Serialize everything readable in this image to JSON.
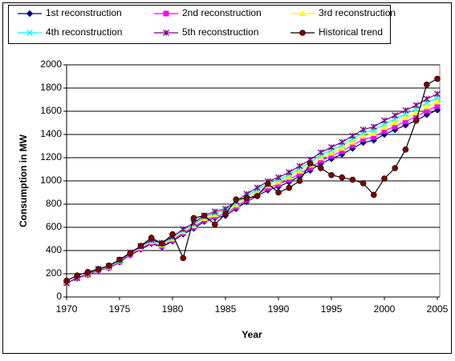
{
  "chart_data": {
    "type": "line",
    "xlabel": "Year",
    "ylabel": "Consumption in MW",
    "x": [
      1970,
      1971,
      1972,
      1973,
      1974,
      1975,
      1976,
      1977,
      1978,
      1979,
      1980,
      1981,
      1982,
      1983,
      1984,
      1985,
      1986,
      1987,
      1988,
      1989,
      1990,
      1991,
      1992,
      1993,
      1994,
      1995,
      1996,
      1997,
      1998,
      1999,
      2000,
      2001,
      2002,
      2003,
      2004,
      2005
    ],
    "xlim": [
      1970,
      2005
    ],
    "xticks": [
      1970,
      1975,
      1980,
      1985,
      1990,
      1995,
      2000,
      2005
    ],
    "ylim": [
      0,
      2000
    ],
    "yticks": [
      0,
      200,
      400,
      600,
      800,
      1000,
      1200,
      1400,
      1600,
      1800,
      2000
    ],
    "grid": true,
    "legend": "top",
    "series": [
      {
        "name": "1st reconstruction",
        "color": "#000080",
        "marker": "diamond",
        "values": [
          120,
          160,
          190,
          230,
          250,
          300,
          360,
          410,
          460,
          430,
          480,
          540,
          590,
          650,
          680,
          700,
          760,
          820,
          870,
          920,
          950,
          990,
          1040,
          1090,
          1150,
          1190,
          1230,
          1280,
          1330,
          1350,
          1400,
          1440,
          1480,
          1520,
          1570,
          1610
        ]
      },
      {
        "name": "2nd reconstruction",
        "color": "#ff00ff",
        "marker": "square",
        "values": [
          120,
          161,
          192,
          233,
          254,
          305,
          366,
          417,
          468,
          439,
          490,
          551,
          602,
          663,
          694,
          715,
          776,
          837,
          888,
          939,
          970,
          1011,
          1062,
          1113,
          1174,
          1215,
          1256,
          1307,
          1358,
          1379,
          1430,
          1471,
          1512,
          1553,
          1604,
          1645
        ]
      },
      {
        "name": "3rd reconstruction",
        "color": "#ffff00",
        "marker": "triangle",
        "values": [
          120,
          162,
          194,
          236,
          258,
          310,
          372,
          424,
          476,
          448,
          500,
          562,
          614,
          676,
          708,
          730,
          792,
          854,
          906,
          958,
          990,
          1032,
          1084,
          1136,
          1198,
          1240,
          1282,
          1334,
          1386,
          1408,
          1460,
          1502,
          1544,
          1586,
          1638,
          1680
        ]
      },
      {
        "name": "4th reconstruction",
        "color": "#00ffff",
        "marker": "x",
        "values": [
          120,
          163,
          196,
          239,
          262,
          315,
          378,
          431,
          484,
          457,
          510,
          573,
          626,
          689,
          722,
          745,
          808,
          871,
          924,
          977,
          1010,
          1053,
          1106,
          1159,
          1222,
          1265,
          1308,
          1361,
          1414,
          1437,
          1490,
          1533,
          1576,
          1619,
          1672,
          1715
        ]
      },
      {
        "name": "5th reconstruction",
        "color": "#800080",
        "marker": "star",
        "values": [
          120,
          164,
          198,
          242,
          266,
          320,
          384,
          438,
          492,
          466,
          520,
          584,
          638,
          702,
          736,
          760,
          824,
          888,
          942,
          996,
          1030,
          1074,
          1128,
          1182,
          1246,
          1290,
          1334,
          1388,
          1442,
          1466,
          1520,
          1564,
          1608,
          1652,
          1706,
          1750
        ]
      },
      {
        "name": "Historical trend",
        "color": "#800000",
        "line_color": "#000000",
        "marker": "circle",
        "values": [
          140,
          185,
          215,
          240,
          270,
          320,
          375,
          440,
          510,
          460,
          540,
          335,
          680,
          700,
          625,
          715,
          840,
          850,
          870,
          975,
          900,
          940,
          1000,
          1150,
          1110,
          1050,
          1030,
          1010,
          980,
          880,
          1020,
          1110,
          1270,
          1520,
          1830,
          1880
        ]
      }
    ]
  }
}
